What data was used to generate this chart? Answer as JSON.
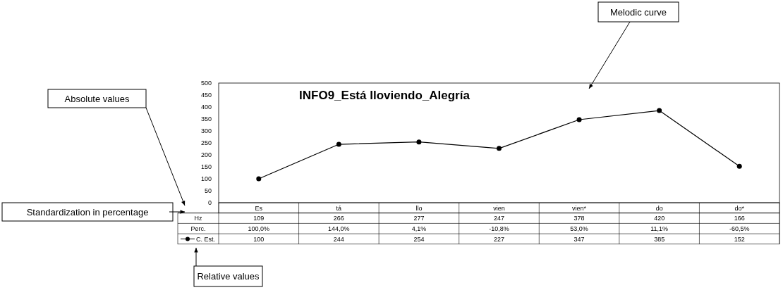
{
  "chart_data": {
    "type": "line",
    "title": "INFO9_Está lloviendo_Alegría",
    "categories": [
      "Es",
      "tá",
      "llo",
      "vien",
      "vien*",
      "do",
      "do*"
    ],
    "series": [
      {
        "name": "Hz",
        "values": [
          null,
          null,
          null,
          null,
          null,
          null,
          null
        ],
        "value_labels": [
          "109",
          "266",
          "277",
          "247",
          "378",
          "420",
          "166"
        ]
      },
      {
        "name": "Perc.",
        "values": [
          null,
          null,
          null,
          null,
          null,
          null,
          null
        ],
        "value_labels": [
          "100,0%",
          "144,0%",
          "4,1%",
          "-10,8%",
          "53,0%",
          "11,1%",
          "-60,5%"
        ]
      },
      {
        "name": "C. Est.",
        "color": "#000000",
        "values": [
          100,
          244,
          254,
          227,
          347,
          385,
          152
        ]
      }
    ],
    "ylim": [
      0,
      500
    ],
    "yticks": [
      0,
      50,
      100,
      150,
      200,
      250,
      300,
      350,
      400,
      450,
      500
    ],
    "marker": "circle",
    "line_style": "solid",
    "data_labels": true,
    "grid": false,
    "legend": "bottom left",
    "annotations": [
      "Absolute values",
      "Standardization in percentage",
      "Relative values",
      "Melodic curve"
    ]
  }
}
